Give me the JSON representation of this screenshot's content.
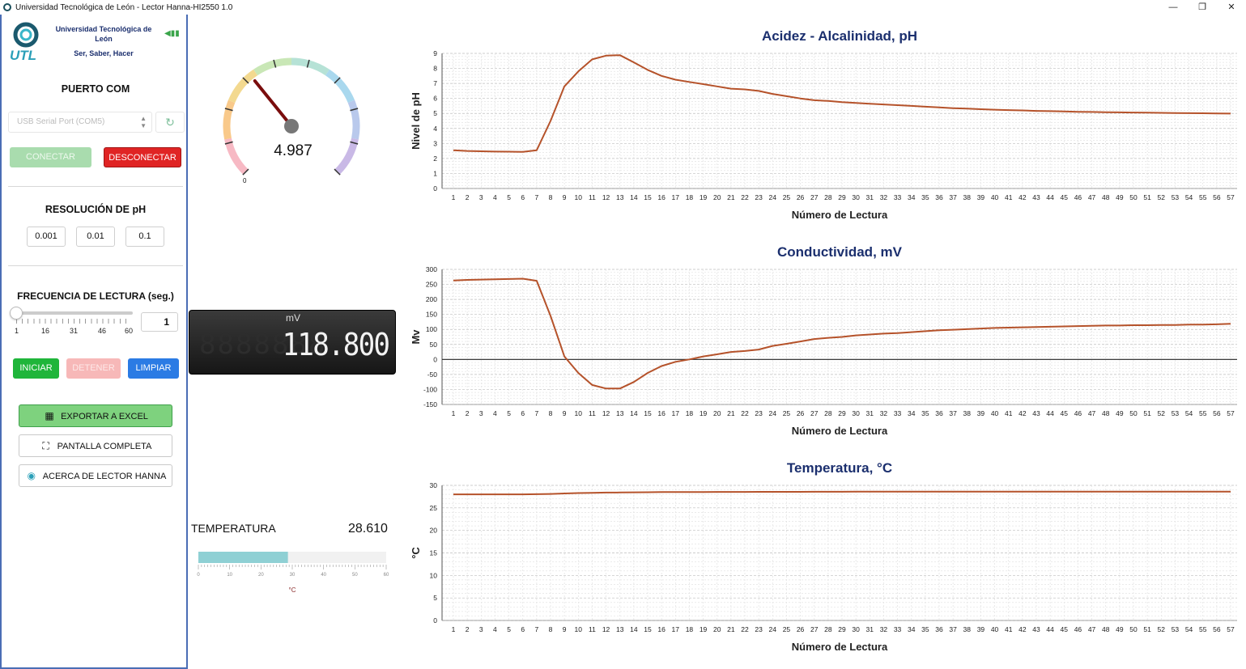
{
  "window": {
    "title": "Universidad Tecnológica de León - Lector Hanna-HI2550 1.0",
    "minimize": "—",
    "maximize": "❐",
    "close": "✕"
  },
  "sidebar": {
    "university_name": "Universidad Tecnológica de León",
    "logo_text": "UTL",
    "motto": "Ser, Saber, Hacer",
    "port_section_title": "PUERTO COM",
    "port_placeholder": "USB Serial Port (COM5)",
    "connect_label": "CONECTAR",
    "disconnect_label": "DESCONECTAR",
    "resolution_title": "RESOLUCIÓN DE pH",
    "resolution_options": [
      "0.001",
      "0.01",
      "0.1"
    ],
    "frequency_title": "FRECUENCIA DE LECTURA (seg.)",
    "frequency_ticks": [
      "1",
      "16",
      "31",
      "46",
      "60"
    ],
    "frequency_value": "1",
    "frequency_slider_fraction": 0.0,
    "start_label": "INICIAR",
    "stop_label": "DETENER",
    "clear_label": "LIMPIAR",
    "export_label": "EXPORTAR A EXCEL",
    "fullscreen_label": "PANTALLA COMPLETA",
    "about_label": "ACERCA DE LECTOR HANNA"
  },
  "gauge": {
    "value": "4.987",
    "min_label": "0",
    "value_fraction": 0.356
  },
  "mv_display": {
    "unit": "mV",
    "value": "118.800",
    "ghost": "8888888"
  },
  "temperature": {
    "label": "TEMPERATURA",
    "value": "28.610",
    "unit": "°C",
    "scale_ticks": [
      "0",
      "10",
      "20",
      "30",
      "40",
      "50",
      "60"
    ],
    "fill_value": 28.61,
    "scale_max": 60
  },
  "chart_data": [
    {
      "type": "line",
      "title": "Acidez - Alcalinidad,  pH",
      "xlabel": "Número de Lectura",
      "ylabel": "Nivel de pH",
      "ylim": [
        0,
        9
      ],
      "yticks": [
        "0",
        "1",
        "2",
        "3",
        "4",
        "5",
        "6",
        "7",
        "8",
        "9"
      ],
      "grid": true,
      "color": "#b5522a",
      "x": [
        1,
        2,
        3,
        4,
        5,
        6,
        7,
        8,
        9,
        10,
        11,
        12,
        13,
        14,
        15,
        16,
        17,
        18,
        19,
        20,
        21,
        22,
        23,
        24,
        25,
        26,
        27,
        28,
        29,
        30,
        31,
        32,
        33,
        34,
        35,
        36,
        37,
        38,
        39,
        40,
        41,
        42,
        43,
        44,
        45,
        46,
        47,
        48,
        49,
        50,
        51,
        52,
        53,
        54,
        55,
        56,
        57
      ],
      "values": [
        2.55,
        2.5,
        2.48,
        2.46,
        2.45,
        2.44,
        2.55,
        4.5,
        6.8,
        7.8,
        8.6,
        8.85,
        8.88,
        8.4,
        7.9,
        7.5,
        7.25,
        7.1,
        6.95,
        6.8,
        6.65,
        6.6,
        6.5,
        6.3,
        6.15,
        6.0,
        5.88,
        5.83,
        5.75,
        5.7,
        5.65,
        5.6,
        5.55,
        5.5,
        5.45,
        5.4,
        5.35,
        5.32,
        5.28,
        5.25,
        5.22,
        5.2,
        5.17,
        5.15,
        5.13,
        5.11,
        5.1,
        5.08,
        5.07,
        5.06,
        5.05,
        5.04,
        5.03,
        5.02,
        5.01,
        5.0,
        4.99
      ]
    },
    {
      "type": "line",
      "title": "Conductividad, mV",
      "xlabel": "Número de Lectura",
      "ylabel": "Mv",
      "ylim": [
        -150,
        300
      ],
      "yticks": [
        "-150",
        "-100",
        "-50",
        "0",
        "50",
        "100",
        "150",
        "200",
        "250",
        "300"
      ],
      "grid": true,
      "zero_line": true,
      "color": "#b5522a",
      "x": [
        1,
        2,
        3,
        4,
        5,
        6,
        7,
        8,
        9,
        10,
        11,
        12,
        13,
        14,
        15,
        16,
        17,
        18,
        19,
        20,
        21,
        22,
        23,
        24,
        25,
        26,
        27,
        28,
        29,
        30,
        31,
        32,
        33,
        34,
        35,
        36,
        37,
        38,
        39,
        40,
        41,
        42,
        43,
        44,
        45,
        46,
        47,
        48,
        49,
        50,
        51,
        52,
        53,
        54,
        55,
        56,
        57
      ],
      "values": [
        263,
        265,
        266,
        267,
        268,
        269,
        262,
        145,
        10,
        -45,
        -85,
        -97,
        -97,
        -75,
        -45,
        -22,
        -8,
        0,
        10,
        17,
        25,
        28,
        33,
        45,
        52,
        60,
        68,
        72,
        75,
        80,
        83,
        86,
        88,
        91,
        94,
        97,
        99,
        101,
        103,
        105,
        106,
        107,
        108,
        109,
        110,
        111,
        112,
        113,
        113,
        114,
        114,
        115,
        115,
        116,
        116,
        117,
        118.8
      ]
    },
    {
      "type": "line",
      "title": "Temperatura, °C",
      "xlabel": "Número de Lectura",
      "ylabel": "°C",
      "ylim": [
        0,
        30
      ],
      "yticks": [
        "0",
        "5",
        "10",
        "15",
        "20",
        "25",
        "30"
      ],
      "grid": true,
      "color": "#b5522a",
      "x": [
        1,
        2,
        3,
        4,
        5,
        6,
        7,
        8,
        9,
        10,
        11,
        12,
        13,
        14,
        15,
        16,
        17,
        18,
        19,
        20,
        21,
        22,
        23,
        24,
        25,
        26,
        27,
        28,
        29,
        30,
        31,
        32,
        33,
        34,
        35,
        36,
        37,
        38,
        39,
        40,
        41,
        42,
        43,
        44,
        45,
        46,
        47,
        48,
        49,
        50,
        51,
        52,
        53,
        54,
        55,
        56,
        57
      ],
      "values": [
        28.0,
        28.0,
        28.0,
        28.0,
        28.0,
        28.0,
        28.05,
        28.1,
        28.2,
        28.3,
        28.35,
        28.4,
        28.42,
        28.45,
        28.47,
        28.5,
        28.5,
        28.52,
        28.53,
        28.54,
        28.55,
        28.55,
        28.56,
        28.56,
        28.57,
        28.57,
        28.58,
        28.58,
        28.58,
        28.59,
        28.59,
        28.59,
        28.6,
        28.6,
        28.6,
        28.6,
        28.6,
        28.6,
        28.6,
        28.6,
        28.61,
        28.61,
        28.61,
        28.61,
        28.61,
        28.61,
        28.61,
        28.61,
        28.61,
        28.61,
        28.61,
        28.61,
        28.61,
        28.61,
        28.61,
        28.61,
        28.61
      ]
    }
  ]
}
